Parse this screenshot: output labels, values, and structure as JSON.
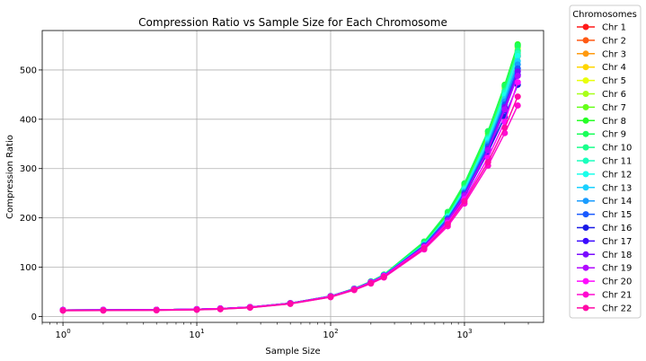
{
  "chart_data": {
    "type": "line",
    "title": "Compression Ratio vs Sample Size for Each Chromosome",
    "xlabel": "Sample Size",
    "ylabel": "Compression Ratio",
    "x_scale": "log",
    "xlim": [
      0.7,
      3900
    ],
    "ylim": [
      -12,
      580
    ],
    "x_ticks": [
      1,
      10,
      100,
      1000
    ],
    "x_tick_labels": [
      "10^0",
      "10^1",
      "10^2",
      "10^3"
    ],
    "y_ticks": [
      0,
      100,
      200,
      300,
      400,
      500
    ],
    "grid": true,
    "legend_title": "Chromosomes",
    "legend_position": "outside-right",
    "x": [
      1,
      2,
      5,
      10,
      15,
      25,
      50,
      100,
      150,
      200,
      250,
      500,
      750,
      1000,
      1500,
      2000,
      2500
    ],
    "series": [
      {
        "name": "Chr 1",
        "color": "#ff1a1a",
        "values": [
          13.0,
          13.2,
          13.6,
          14.6,
          15.9,
          19.0,
          26.8,
          41.0,
          55.9,
          70.0,
          83.1,
          145.0,
          200.5,
          255.0,
          356.0,
          448.0,
          528.0
        ]
      },
      {
        "name": "Chr 2",
        "color": "#ff5a14",
        "values": [
          13.0,
          13.2,
          13.6,
          14.6,
          15.9,
          19.0,
          26.8,
          41.0,
          55.9,
          70.0,
          83.1,
          145.0,
          200.5,
          254.9,
          355.8,
          447.6,
          527.5
        ]
      },
      {
        "name": "Chr 3",
        "color": "#ff9a0f",
        "values": [
          13.0,
          13.2,
          13.6,
          14.6,
          15.9,
          19.0,
          26.8,
          41.0,
          56.0,
          70.1,
          83.2,
          145.3,
          201.0,
          256.0,
          357.5,
          450.0,
          531.0
        ]
      },
      {
        "name": "Chr 4",
        "color": "#ffd600",
        "values": [
          13.0,
          13.2,
          13.6,
          14.6,
          15.9,
          19.0,
          26.9,
          41.1,
          56.1,
          70.3,
          83.5,
          146.0,
          202.5,
          258.5,
          361.0,
          455.0,
          537.0
        ]
      },
      {
        "name": "Chr 5",
        "color": "#e8ff0a",
        "values": [
          13.0,
          13.2,
          13.6,
          14.6,
          15.9,
          19.0,
          26.9,
          41.1,
          56.2,
          70.4,
          83.7,
          146.5,
          203.5,
          260.0,
          363.5,
          458.0,
          541.0
        ]
      },
      {
        "name": "Chr 6",
        "color": "#a8ff1a",
        "values": [
          13.0,
          13.2,
          13.6,
          14.6,
          15.9,
          19.0,
          26.9,
          41.2,
          56.3,
          70.6,
          84.0,
          147.5,
          205.0,
          262.5,
          367.0,
          463.0,
          546.0
        ]
      },
      {
        "name": "Chr 7",
        "color": "#66ff1a",
        "values": [
          13.0,
          13.2,
          13.6,
          14.6,
          15.9,
          19.0,
          26.9,
          41.2,
          56.4,
          70.8,
          84.3,
          148.5,
          207.0,
          265.0,
          371.0,
          467.0,
          550.0
        ]
      },
      {
        "name": "Chr 8",
        "color": "#26ff26",
        "values": [
          13.0,
          13.2,
          13.6,
          14.6,
          15.9,
          19.1,
          27.0,
          41.3,
          56.5,
          71.0,
          84.6,
          150.0,
          209.5,
          268.0,
          375.0,
          470.0,
          552.0
        ]
      },
      {
        "name": "Chr 9",
        "color": "#1aff5a",
        "values": [
          13.0,
          13.2,
          13.6,
          14.6,
          15.9,
          19.1,
          27.0,
          41.3,
          56.6,
          71.2,
          85.0,
          152.0,
          212.0,
          270.0,
          376.0,
          468.0,
          549.0
        ]
      },
      {
        "name": "Chr 10",
        "color": "#1aff8c",
        "values": [
          13.0,
          13.2,
          13.6,
          14.6,
          15.9,
          19.0,
          26.9,
          41.2,
          56.3,
          70.6,
          84.0,
          147.0,
          204.0,
          261.0,
          364.0,
          458.0,
          539.0
        ]
      },
      {
        "name": "Chr 11",
        "color": "#1affbd",
        "values": [
          13.0,
          13.2,
          13.6,
          14.6,
          15.9,
          19.0,
          26.9,
          41.1,
          56.2,
          70.4,
          83.8,
          146.5,
          203.0,
          259.0,
          361.0,
          454.0,
          534.0
        ]
      },
      {
        "name": "Chr 12",
        "color": "#1affea",
        "values": [
          13.0,
          13.2,
          13.6,
          14.6,
          15.9,
          19.0,
          26.9,
          41.1,
          56.1,
          70.3,
          83.6,
          146.0,
          202.0,
          257.0,
          358.0,
          449.0,
          528.0
        ]
      },
      {
        "name": "Chr 13",
        "color": "#1ad1ff",
        "values": [
          13.0,
          13.2,
          13.6,
          14.6,
          15.9,
          19.0,
          26.8,
          41.0,
          56.0,
          70.1,
          83.3,
          145.0,
          200.0,
          254.0,
          352.0,
          441.0,
          518.0
        ]
      },
      {
        "name": "Chr 14",
        "color": "#1a9cff",
        "values": [
          13.0,
          13.2,
          13.6,
          14.6,
          15.9,
          19.0,
          26.8,
          41.0,
          55.9,
          70.0,
          83.1,
          144.5,
          199.0,
          252.0,
          349.0,
          436.0,
          511.0
        ]
      },
      {
        "name": "Chr 15",
        "color": "#1a5aff",
        "values": [
          13.0,
          13.2,
          13.6,
          14.6,
          15.9,
          19.0,
          26.8,
          40.9,
          55.8,
          69.8,
          82.9,
          144.0,
          198.0,
          250.0,
          345.0,
          430.0,
          503.0
        ]
      },
      {
        "name": "Chr 16",
        "color": "#1a1ae6",
        "values": [
          13.0,
          13.2,
          13.6,
          14.6,
          15.9,
          18.9,
          26.7,
          40.8,
          55.6,
          69.5,
          82.5,
          142.0,
          194.0,
          245.0,
          333.0,
          405.0,
          470.0
        ]
      },
      {
        "name": "Chr 17",
        "color": "#3c0aff",
        "values": [
          13.0,
          13.2,
          13.6,
          14.6,
          15.9,
          18.9,
          26.7,
          40.8,
          55.5,
          69.3,
          82.3,
          141.5,
          193.0,
          243.0,
          335.0,
          418.0,
          490.0
        ]
      },
      {
        "name": "Chr 18",
        "color": "#7a0aff",
        "values": [
          13.0,
          13.2,
          13.6,
          14.6,
          15.9,
          18.9,
          26.7,
          40.8,
          55.6,
          69.5,
          82.6,
          142.5,
          195.0,
          247.0,
          340.0,
          425.0,
          497.0
        ]
      },
      {
        "name": "Chr 19",
        "color": "#b20aff",
        "values": [
          13.0,
          13.2,
          13.6,
          14.6,
          15.9,
          18.9,
          26.7,
          40.8,
          55.5,
          69.4,
          82.4,
          142.0,
          194.0,
          245.0,
          337.0,
          420.0,
          488.0
        ]
      },
      {
        "name": "Chr 20",
        "color": "#ff0aff",
        "values": [
          13.0,
          13.2,
          13.6,
          14.6,
          15.9,
          18.9,
          26.6,
          40.6,
          55.3,
          69.0,
          81.8,
          140.0,
          190.0,
          238.0,
          322.0,
          395.0,
          475.0
        ]
      },
      {
        "name": "Chr 21",
        "color": "#ff0ad1",
        "values": [
          12.0,
          12.2,
          12.6,
          13.6,
          14.9,
          17.9,
          25.6,
          39.2,
          53.5,
          66.7,
          79.0,
          136.0,
          183.0,
          229.0,
          306.0,
          372.0,
          428.0
        ]
      },
      {
        "name": "Chr 22",
        "color": "#ff0aa6",
        "values": [
          12.0,
          12.2,
          12.6,
          13.6,
          14.9,
          17.9,
          25.7,
          39.5,
          54.0,
          67.5,
          80.0,
          138.0,
          187.0,
          234.0,
          313.0,
          383.0,
          446.0
        ]
      }
    ]
  }
}
